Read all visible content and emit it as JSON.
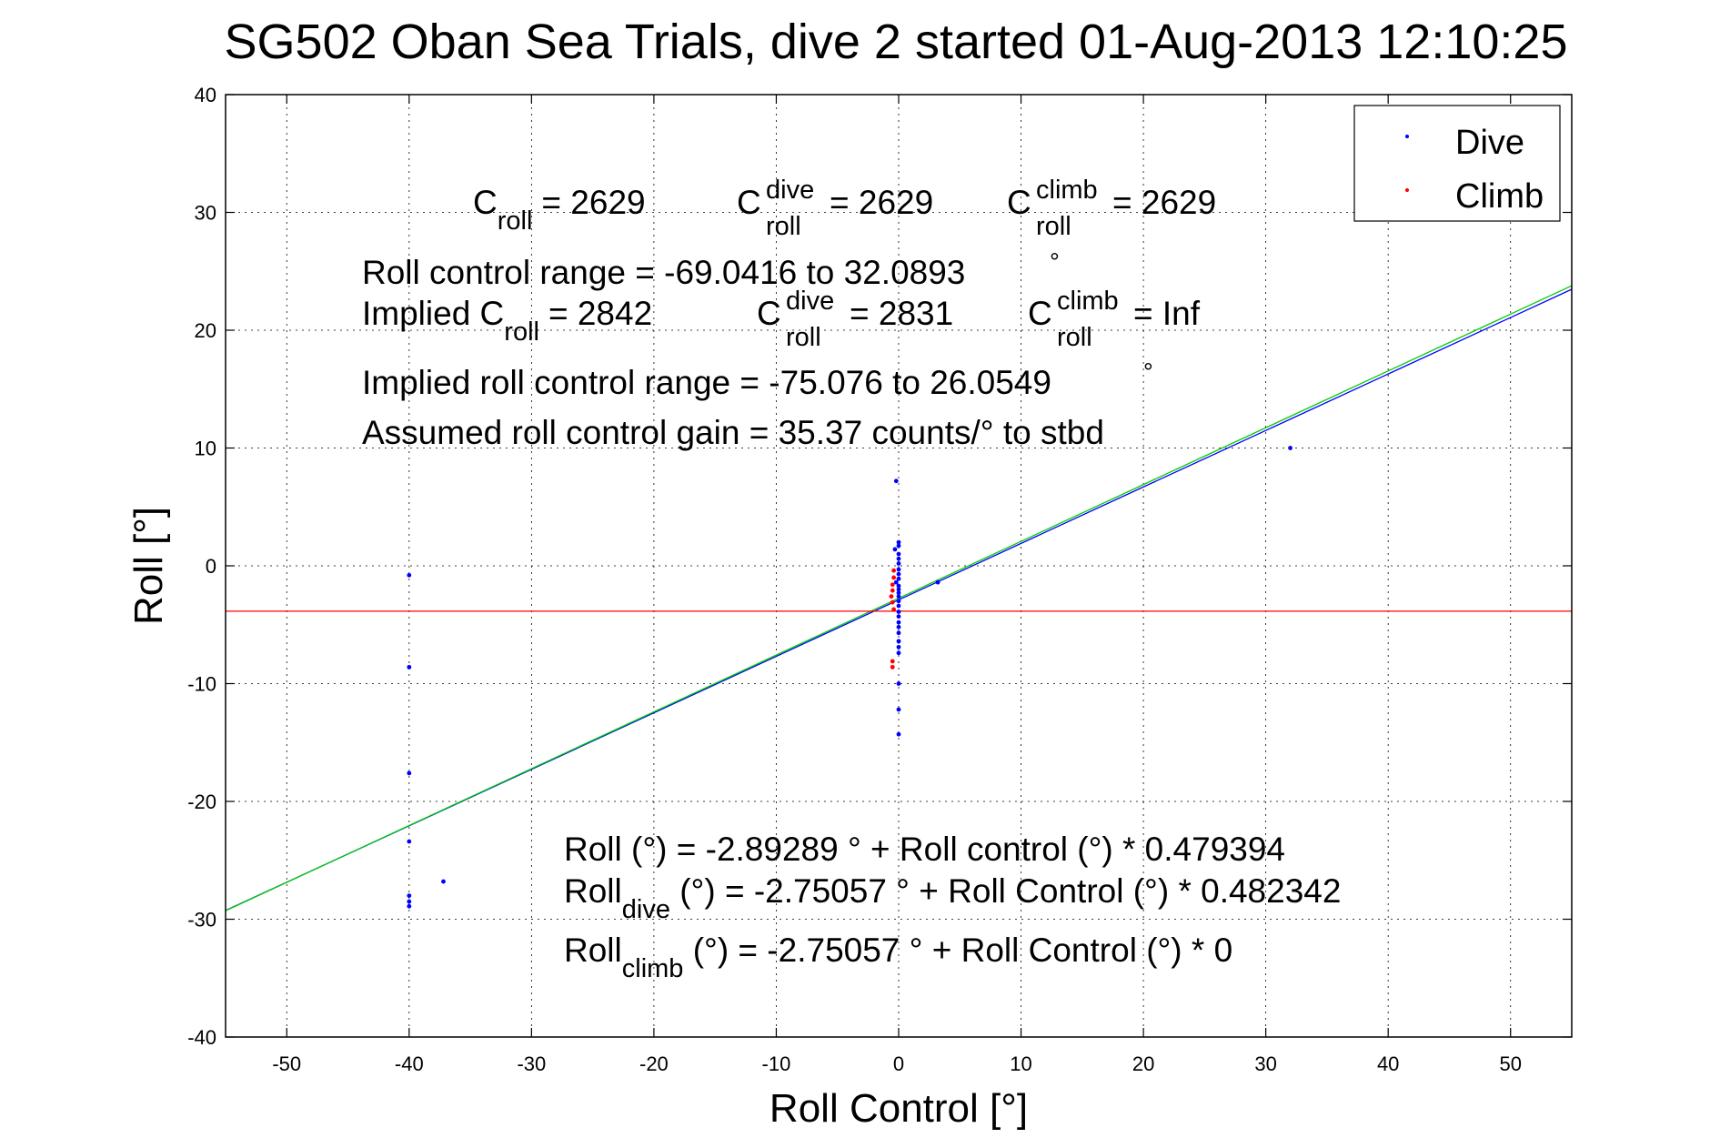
{
  "chart_data": {
    "type": "scatter",
    "title": "SG502 Oban Sea Trials, dive 2 started 01-Aug-2013 12:10:25",
    "xlabel": "Roll Control [°]",
    "ylabel": "Roll [°]",
    "xlim": [
      -55,
      55
    ],
    "ylim": [
      -40,
      40
    ],
    "xticks": [
      -50,
      -40,
      -30,
      -20,
      -10,
      0,
      10,
      20,
      30,
      40,
      50
    ],
    "yticks": [
      -40,
      -30,
      -20,
      -10,
      0,
      10,
      20,
      30,
      40
    ],
    "grid": true,
    "legend_position": "top-right",
    "colors": {
      "dive": "#0000ff",
      "climb": "#ff0000",
      "fit_all": "#0000ff",
      "fit_dive": "#00cc00",
      "reference_line": "#ff0000"
    },
    "series": [
      {
        "name": "Dive",
        "color": "#0000ff",
        "points": [
          [
            -40,
            -0.8
          ],
          [
            -40,
            -8.6
          ],
          [
            -40,
            -17.6
          ],
          [
            -40,
            -23.4
          ],
          [
            -40,
            -28.0
          ],
          [
            -40,
            -28.5
          ],
          [
            -40,
            -28.9
          ],
          [
            -37.2,
            -26.8
          ],
          [
            -0.2,
            7.2
          ],
          [
            0,
            2.0
          ],
          [
            0,
            1.7
          ],
          [
            -0.3,
            1.4
          ],
          [
            0,
            1.0
          ],
          [
            0,
            0.6
          ],
          [
            0,
            0.2
          ],
          [
            0,
            -0.3
          ],
          [
            0,
            -0.7
          ],
          [
            0,
            -1.1
          ],
          [
            -0.2,
            -1.4
          ],
          [
            0,
            -1.7
          ],
          [
            0,
            -2.0
          ],
          [
            0,
            -2.3
          ],
          [
            0,
            -2.6
          ],
          [
            0,
            -3.0
          ],
          [
            0,
            -3.4
          ],
          [
            0,
            -3.9
          ],
          [
            0,
            -4.3
          ],
          [
            0,
            -4.8
          ],
          [
            0,
            -5.2
          ],
          [
            0,
            -5.7
          ],
          [
            0,
            -6.4
          ],
          [
            0,
            -6.9
          ],
          [
            0,
            -7.4
          ],
          [
            0,
            -10.0
          ],
          [
            0,
            -12.2
          ],
          [
            0,
            -14.3
          ],
          [
            3.2,
            -1.4
          ],
          [
            32.0,
            10.0
          ]
        ]
      },
      {
        "name": "Climb",
        "color": "#ff0000",
        "points": [
          [
            -0.4,
            -0.4
          ],
          [
            -0.4,
            -1.0
          ],
          [
            -0.5,
            -1.6
          ],
          [
            -0.5,
            -2.1
          ],
          [
            -0.6,
            -2.6
          ],
          [
            -0.5,
            -3.1
          ],
          [
            -0.4,
            -3.7
          ],
          [
            -0.5,
            -8.1
          ],
          [
            -0.5,
            -8.6
          ]
        ]
      }
    ],
    "lines": [
      {
        "color": "#0000ff",
        "intercept": -2.89289,
        "slope": 0.479394
      },
      {
        "color": "#00cc00",
        "intercept": -2.75057,
        "slope": 0.482342
      },
      {
        "color": "#ff0000",
        "intercept": -3.85,
        "slope": 0
      }
    ],
    "annotations": {
      "c_roll": {
        "base": "C",
        "sub": "roll",
        "value": "= 2629"
      },
      "c_roll_dive": {
        "base": "C",
        "sup": "dive",
        "sub": "roll",
        "value": "= 2629"
      },
      "c_roll_climb": {
        "base": "C",
        "sup": "climb",
        "sub": "roll",
        "value": "= 2629"
      },
      "roll_control_range": "Roll control range = -69.0416 to 32.0893",
      "implied_c_roll": {
        "prefix": "Implied C",
        "sub": "roll",
        "value": "= 2842"
      },
      "implied_c_roll_dive": {
        "base": "C",
        "sup": "dive",
        "sub": "roll",
        "value": "= 2831"
      },
      "implied_c_roll_climb": {
        "base": "C",
        "sup": "climb",
        "sub": "roll",
        "value": "=  Inf"
      },
      "implied_range": "Implied roll control range = -75.076 to 26.0549",
      "gain": "Assumed roll control gain = 35.37 counts/° to stbd",
      "degree_symbol": "°",
      "fit_all": "Roll (°) = -2.89289 ° + Roll control (°) * 0.479394",
      "fit_dive": {
        "base": "Roll",
        "sub": "dive",
        "rest": " (°) = -2.75057 ° + Roll Control (°) * 0.482342"
      },
      "fit_climb": {
        "base": "Roll",
        "sub": "climb",
        "rest": " (°) = -2.75057 ° + Roll Control (°) * 0"
      }
    }
  }
}
